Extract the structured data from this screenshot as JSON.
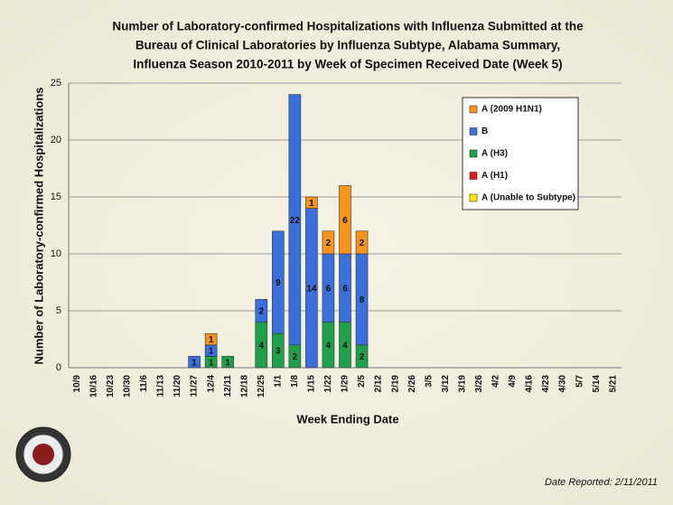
{
  "chart_data": {
    "type": "stacked_bar",
    "title": [
      "Number of Laboratory-confirmed Hospitalizations with Influenza Submitted at the",
      "Bureau of Clinical Laboratories by Influenza Subtype, Alabama Summary,",
      "Influenza Season 2010-2011 by Week of Specimen Received Date (Week 5)"
    ],
    "x_label": "Week Ending Date",
    "y_label": "Number of Laboratory-confirmed Hospitalizations",
    "footnote": "Date Reported: 2/11/2011",
    "categories": [
      "10/9",
      "10/16",
      "10/23",
      "10/30",
      "11/6",
      "11/13",
      "11/20",
      "11/27",
      "12/4",
      "12/11",
      "12/18",
      "12/25",
      "1/1",
      "1/8",
      "1/15",
      "1/22",
      "1/29",
      "2/5",
      "2/12",
      "2/19",
      "2/26",
      "3/5",
      "3/12",
      "3/19",
      "3/26",
      "4/2",
      "4/9",
      "4/16",
      "4/23",
      "4/30",
      "5/7",
      "5/14",
      "5/21"
    ],
    "series": [
      {
        "name": "A (2009 H1N1)",
        "color": "#f7941d",
        "values": [
          0,
          0,
          0,
          0,
          0,
          0,
          0,
          0,
          1,
          0,
          0,
          0,
          0,
          0,
          1,
          2,
          6,
          2,
          0,
          0,
          0,
          0,
          0,
          0,
          0,
          0,
          0,
          0,
          0,
          0,
          0,
          0,
          0
        ]
      },
      {
        "name": "B",
        "color": "#3b6fdc",
        "values": [
          0,
          0,
          0,
          0,
          0,
          0,
          0,
          1,
          1,
          0,
          0,
          2,
          9,
          22,
          14,
          6,
          6,
          8,
          0,
          0,
          0,
          0,
          0,
          0,
          0,
          0,
          0,
          0,
          0,
          0,
          0,
          0,
          0
        ]
      },
      {
        "name": "A (H3)",
        "color": "#1fa04a",
        "values": [
          0,
          0,
          0,
          0,
          0,
          0,
          0,
          0,
          1,
          1,
          0,
          4,
          3,
          2,
          0,
          4,
          4,
          2,
          0,
          0,
          0,
          0,
          0,
          0,
          0,
          0,
          0,
          0,
          0,
          0,
          0,
          0,
          0
        ]
      },
      {
        "name": "A (H1)",
        "color": "#e31a1c",
        "values": [
          0,
          0,
          0,
          0,
          0,
          0,
          0,
          0,
          0,
          0,
          0,
          0,
          0,
          0,
          0,
          0,
          0,
          0,
          0,
          0,
          0,
          0,
          0,
          0,
          0,
          0,
          0,
          0,
          0,
          0,
          0,
          0,
          0
        ]
      },
      {
        "name": "A (Unable to Subtype)",
        "color": "#ffee00",
        "values": [
          0,
          0,
          0,
          0,
          0,
          0,
          0,
          0,
          0,
          0,
          0,
          0,
          0,
          0,
          0,
          0,
          0,
          0,
          0,
          0,
          0,
          0,
          0,
          0,
          0,
          0,
          0,
          0,
          0,
          0,
          0,
          0,
          0
        ]
      }
    ],
    "ylim": [
      0,
      25
    ],
    "yticks": [
      0,
      5,
      10,
      15,
      20,
      25
    ],
    "grid": true,
    "legend": "upper right"
  }
}
